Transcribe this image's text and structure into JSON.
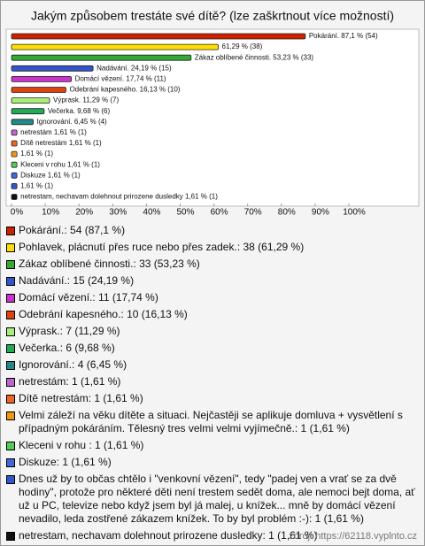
{
  "chart_data": {
    "type": "bar",
    "orientation": "horizontal",
    "title": "Jakým způsobem trestáte své dítě? (lze zaškrtnout více možností)",
    "categories": [
      "Pokárání.: 54 (87,1 %)",
      "Pohlavek, plácnutí přes ruce nebo přes zadek.: 38 (61,29 %)",
      "Zákaz oblíbené činnosti.: 33 (53,23 %)",
      "Nadávání.: 15 (24,19 %)",
      "Domácí vězení.: 11 (17,74 %)",
      "Odebrání kapesného.: 10 (16,13 %)",
      "Výprask.: 7 (11,29 %)",
      "Večerka.: 6 (9,68 %)",
      "Ignorování.: 4 (6,45 %)",
      "netrestám: 1 (1,61 %)",
      "Dítě netrestám: 1 (1,61 %)",
      "Velmi záleží na věku dítěte a situaci. Nejčastěji se aplikuje domluva + vysvětlení s případným pokáráním. Tělesný tres velmi velmi vyjímečně.: 1 (1,61 %)",
      "Kleceni v rohu  : 1 (1,61 %)",
      "Diskuze: 1 (1,61 %)",
      "Dnes už by to občas chtělo i \"venkovní vězení\", tedy \"padej ven a vrať se za dvě hodiny\", protože pro některé děti není trestem sedět doma, ale nemoci bejt doma, ať už u PC, televize nebo když jsem byl já malej, u knížek... mně by domácí vězení nevadilo, leda zostřené zákazem knížek. To by byl problém :-): 1 (1,61 %)",
      "netrestam, nechavam dolehnout prirozene dusledky: 1 (1,61 %)"
    ],
    "values": [
      87.1,
      61.29,
      53.23,
      24.19,
      17.74,
      16.13,
      11.29,
      9.68,
      6.45,
      1.61,
      1.61,
      1.61,
      1.61,
      1.61,
      1.61,
      1.61
    ],
    "value_labels": [
      "Pokárání. 87,1 % (54)",
      "61,29 % (38)",
      "Zákaz oblíbené činnosti. 53,23 % (33)",
      "Nadávání. 24,19 % (15)",
      "Domácí vězení. 17,74 % (11)",
      "Odebrání kapesného. 16,13 % (10)",
      "Výprask. 11,29 % (7)",
      "Večerka. 9,68 % (6)",
      "Ignorování. 6,45 % (4)",
      "netrestám 1,61 % (1)",
      "Dítě netrestám 1,61 % (1)",
      "1,61 % (1)",
      "Kleceni v rohu   1,61 % (1)",
      "Diskuze 1,61 % (1)",
      "1,61 % (1)",
      "netrestam, nechavam dolehnout prirozene dusledky 1,61 % (1)"
    ],
    "colors": [
      "#cc2200",
      "#ffdd00",
      "#33aa33",
      "#3355cc",
      "#cc33cc",
      "#dd4411",
      "#aaee77",
      "#22aa55",
      "#228888",
      "#bb66cc",
      "#ee6622",
      "#ee9911",
      "#55cc55",
      "#4466dd",
      "#3355cc",
      "#111111"
    ],
    "xlim": [
      0,
      100
    ],
    "xticks": [
      {
        "value": 0,
        "label": "0%"
      },
      {
        "value": 10,
        "label": "10%"
      },
      {
        "value": 20,
        "label": "20%"
      },
      {
        "value": 30,
        "label": "30%"
      },
      {
        "value": 40,
        "label": "40%"
      },
      {
        "value": 50,
        "label": "50%"
      },
      {
        "value": 60,
        "label": "60%"
      },
      {
        "value": 70,
        "label": "70%"
      },
      {
        "value": 80,
        "label": "80%"
      },
      {
        "value": 90,
        "label": "90%"
      },
      {
        "value": 100,
        "label": "100%"
      }
    ],
    "source": "zdroj: https://62118.vyplnto.cz"
  }
}
